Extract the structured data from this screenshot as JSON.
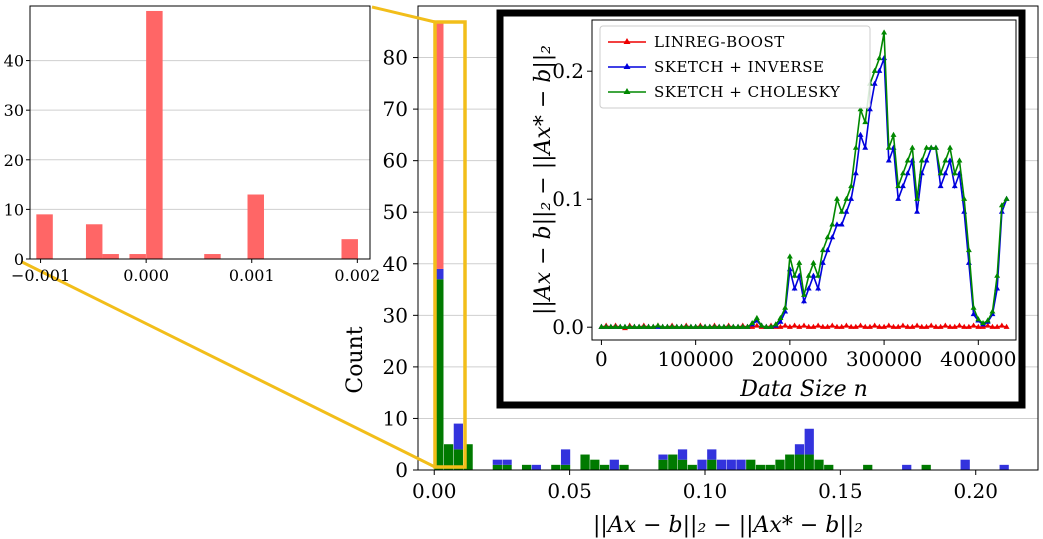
{
  "chart_data": [
    {
      "type": "bar",
      "stacked": true,
      "xlabel": "||Ax − b||₂ − ||Ax* − b||₂",
      "ylabel": "Count",
      "xlim": [
        -0.006,
        0.223
      ],
      "ylim": [
        0,
        90
      ],
      "xticks": [
        "0.00",
        "0.05",
        "0.10",
        "0.15",
        "0.20"
      ],
      "xtick_values": [
        0,
        0.05,
        0.1,
        0.15,
        0.2
      ],
      "yticks": [
        "0",
        "10",
        "20",
        "30",
        "40",
        "50",
        "60",
        "70",
        "80"
      ],
      "ytick_values": [
        0,
        10,
        20,
        30,
        40,
        50,
        60,
        70,
        80
      ],
      "grid": "y",
      "bin_width": 0.0036,
      "bin_starts": [
        0,
        0.0036,
        0.0072,
        0.0108,
        0.0216,
        0.0252,
        0.0324,
        0.036,
        0.0432,
        0.0468,
        0.054,
        0.0576,
        0.0612,
        0.0648,
        0.0684,
        0.0828,
        0.0864,
        0.09,
        0.0936,
        0.0972,
        0.1008,
        0.1044,
        0.108,
        0.1116,
        0.1152,
        0.1188,
        0.1224,
        0.126,
        0.1296,
        0.1332,
        0.1368,
        0.1404,
        0.144,
        0.1476,
        0.1584,
        0.1728,
        0.18,
        0.1944,
        0.2088
      ],
      "series": [
        {
          "name": "LINREG-BOOST",
          "color": "#ff6666",
          "values": [
            48,
            0,
            0,
            0,
            0,
            0,
            0,
            0,
            0,
            0,
            0,
            0,
            0,
            0,
            0,
            0,
            0,
            0,
            0,
            0,
            0,
            0,
            0,
            0,
            0,
            0,
            0,
            0,
            0,
            0,
            0,
            0,
            0,
            0,
            0,
            0,
            0,
            0,
            0
          ]
        },
        {
          "name": "SKETCH + INVERSE",
          "color": "#3333dd",
          "values": [
            2,
            0,
            5,
            0,
            1,
            1,
            0,
            1,
            0,
            3,
            0,
            0,
            0,
            2,
            0,
            1,
            0,
            2,
            0,
            2,
            2,
            2,
            2,
            2,
            0,
            0,
            0,
            0,
            0,
            2,
            5,
            0,
            0,
            0,
            0,
            1,
            0,
            2,
            1
          ]
        },
        {
          "name": "SKETCH + CHOLESKY",
          "color": "#007a00",
          "values": [
            37,
            5,
            4,
            5,
            1,
            1,
            1,
            0,
            1,
            1,
            3,
            2,
            1,
            0,
            1,
            2,
            3,
            2,
            1,
            0,
            2,
            0,
            0,
            0,
            2,
            1,
            1,
            2,
            3,
            3,
            3,
            2,
            1,
            0,
            1,
            0,
            1,
            0,
            0
          ]
        }
      ]
    },
    {
      "type": "bar",
      "role": "zoom-inset",
      "xlim": [
        -0.0011,
        0.00212
      ],
      "ylim": [
        0,
        51
      ],
      "xticks": [
        "−0.001",
        "0.000",
        "0.001",
        "0.002"
      ],
      "xtick_values": [
        -0.001,
        0,
        0.001,
        0.002
      ],
      "yticks": [
        "0",
        "10",
        "20",
        "30",
        "40"
      ],
      "ytick_values": [
        0,
        10,
        20,
        30,
        40
      ],
      "grid": "y",
      "color": "#ff6666",
      "bin_width": 0.000156,
      "bin_starts": [
        -0.00104,
        -0.00057,
        -0.000414,
        -0.000158,
        0.0,
        0.00055,
        0.00096,
        0.00185
      ],
      "values": [
        9,
        7,
        1,
        1,
        50,
        1,
        13,
        4
      ]
    },
    {
      "type": "line",
      "role": "inset",
      "xlabel": "Data Size n",
      "ylabel": "||Ax − b||₂ − ||Ax* − b||₂",
      "xlim": [
        -10000,
        440000
      ],
      "ylim": [
        -0.01,
        0.24
      ],
      "xticks": [
        "0",
        "100000",
        "200000",
        "300000",
        "400000"
      ],
      "xtick_values": [
        0,
        100000,
        200000,
        300000,
        400000
      ],
      "yticks": [
        "0.0",
        "0.1",
        "0.2"
      ],
      "ytick_values": [
        0,
        0.1,
        0.2
      ],
      "legend": "top-left",
      "x": [
        0,
        5000,
        10000,
        15000,
        20000,
        25000,
        30000,
        35000,
        40000,
        45000,
        50000,
        55000,
        60000,
        65000,
        70000,
        75000,
        80000,
        85000,
        90000,
        95000,
        100000,
        105000,
        110000,
        115000,
        120000,
        125000,
        130000,
        135000,
        140000,
        145000,
        150000,
        155000,
        160000,
        165000,
        170000,
        175000,
        180000,
        185000,
        190000,
        195000,
        200000,
        205000,
        210000,
        215000,
        220000,
        225000,
        230000,
        235000,
        240000,
        245000,
        250000,
        255000,
        260000,
        265000,
        270000,
        275000,
        280000,
        285000,
        290000,
        295000,
        300000,
        305000,
        310000,
        315000,
        320000,
        325000,
        330000,
        335000,
        340000,
        345000,
        350000,
        355000,
        360000,
        365000,
        370000,
        375000,
        380000,
        385000,
        390000,
        395000,
        400000,
        405000,
        410000,
        415000,
        420000,
        425000,
        430000
      ],
      "series": [
        {
          "name": "LINREG-BOOST",
          "color": "#ee0000",
          "values": [
            0,
            0.001,
            0,
            0.001,
            0,
            -0.001,
            0.001,
            0,
            0,
            0.001,
            0,
            0,
            0.001,
            0,
            0,
            0.001,
            0,
            0,
            0.001,
            0,
            0,
            0.001,
            0,
            0,
            0.001,
            0,
            0,
            0.001,
            0,
            0,
            0.001,
            0,
            0,
            0.001,
            0,
            0,
            0.001,
            0,
            0,
            0.001,
            0,
            0.001,
            0,
            0.001,
            0,
            0,
            0.001,
            0,
            0,
            0.001,
            0,
            0,
            0.001,
            0,
            0,
            0.001,
            0,
            0,
            0.001,
            0,
            0,
            0.001,
            0,
            0,
            0.001,
            0,
            0,
            0.001,
            0,
            0,
            0.001,
            0,
            0,
            0.001,
            0,
            0,
            0.001,
            0,
            0,
            0.001,
            0,
            0,
            0.001,
            0,
            0,
            0.001,
            0
          ]
        },
        {
          "name": "SKETCH + INVERSE",
          "color": "#0000dd",
          "values": [
            0,
            0,
            0,
            0,
            0,
            0,
            0,
            0,
            0,
            0,
            0,
            0,
            0,
            0,
            0,
            0,
            0,
            0,
            0,
            0,
            0,
            0,
            0,
            0,
            0,
            0,
            0,
            0,
            0,
            0,
            0,
            0,
            0.002,
            0.005,
            0.001,
            0,
            0,
            0.001,
            0.004,
            0.012,
            0.045,
            0.03,
            0.04,
            0.02,
            0.03,
            0.04,
            0.03,
            0.05,
            0.06,
            0.07,
            0.08,
            0.08,
            0.09,
            0.1,
            0.12,
            0.15,
            0.14,
            0.17,
            0.19,
            0.2,
            0.21,
            0.13,
            0.14,
            0.1,
            0.11,
            0.12,
            0.13,
            0.09,
            0.12,
            0.13,
            0.14,
            0.14,
            0.11,
            0.12,
            0.13,
            0.11,
            0.12,
            0.09,
            0.05,
            0.01,
            0.005,
            0.002,
            0.004,
            0.01,
            0.03,
            0.09,
            0.1
          ]
        },
        {
          "name": "SKETCH + CHOLESKY",
          "color": "#008800",
          "values": [
            0,
            0,
            0,
            0,
            0,
            0,
            0,
            0,
            0,
            0,
            0,
            0,
            0.001,
            0,
            0,
            0,
            0,
            0,
            0,
            0,
            0,
            0,
            0,
            0,
            0,
            0,
            0,
            0,
            0,
            0,
            0,
            0,
            0.003,
            0.007,
            0.001,
            0,
            0,
            0.002,
            0.007,
            0.015,
            0.055,
            0.04,
            0.05,
            0.025,
            0.04,
            0.05,
            0.04,
            0.06,
            0.07,
            0.08,
            0.1,
            0.09,
            0.1,
            0.11,
            0.14,
            0.17,
            0.16,
            0.19,
            0.2,
            0.21,
            0.23,
            0.14,
            0.15,
            0.11,
            0.12,
            0.13,
            0.14,
            0.1,
            0.13,
            0.14,
            0.14,
            0.14,
            0.12,
            0.13,
            0.14,
            0.12,
            0.13,
            0.1,
            0.06,
            0.015,
            0.006,
            0.003,
            0.005,
            0.012,
            0.04,
            0.095,
            0.1
          ]
        }
      ]
    }
  ]
}
